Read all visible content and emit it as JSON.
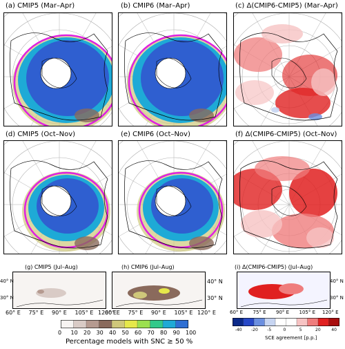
{
  "panels": {
    "a": {
      "title": "(a) CMIP5 (Mar–Apr)"
    },
    "b": {
      "title": "(b) CMIP6 (Mar–Apr)"
    },
    "c": {
      "title": "(c) Δ(CMIP6-CMIP5) (Mar–Apr)"
    },
    "d": {
      "title": "(d) CMIP5 (Oct–Nov)"
    },
    "e": {
      "title": "(e) CMIP6 (Oct–Nov)"
    },
    "f": {
      "title": "(f) Δ(CMIP6-CMIP5) (Oct–Nov)"
    },
    "g": {
      "title": "(g)  CMIP5 (Jul–Aug)"
    },
    "h": {
      "title": "(h) CMIP6  (Jul–Aug)"
    },
    "i": {
      "title": "(i) Δ(CMIP6-CMIP5) (Jul–Aug)"
    }
  },
  "regional_axes": {
    "lat_labels": [
      "40° N",
      "30° N"
    ],
    "lon_labels": [
      "60° E",
      "75° E",
      "90° E",
      "105° E",
      "120° E"
    ]
  },
  "colorbar_left": {
    "title": "Percentage models with SNC  ≥  50 %",
    "ticks": [
      "0",
      "10",
      "20",
      "30",
      "40",
      "50",
      "60",
      "70",
      "80",
      "90",
      "100"
    ],
    "colors": [
      "#f7f4f2",
      "#d9cbc6",
      "#b59a90",
      "#8a6a5c",
      "#cfc77a",
      "#e6e84a",
      "#9be04e",
      "#32c98a",
      "#1eaad6",
      "#2f6fd3"
    ]
  },
  "colorbar_right": {
    "title": "SCE agreement [p.p.]",
    "ticks": [
      "-40",
      "-20",
      "-5",
      "0",
      "5",
      "20",
      "40"
    ],
    "colors": [
      "#0c2a8a",
      "#2748c7",
      "#6b8fe0",
      "#c7d5f2",
      "#ffffff",
      "#ffffff",
      "#f6c3c3",
      "#ef7d7d",
      "#e02020",
      "#a80d0d"
    ]
  },
  "colors": {
    "coast": "#000000",
    "magenta": "#e020e0",
    "grid": "#b0b0b0",
    "snow_core": "#2f5fd0"
  }
}
